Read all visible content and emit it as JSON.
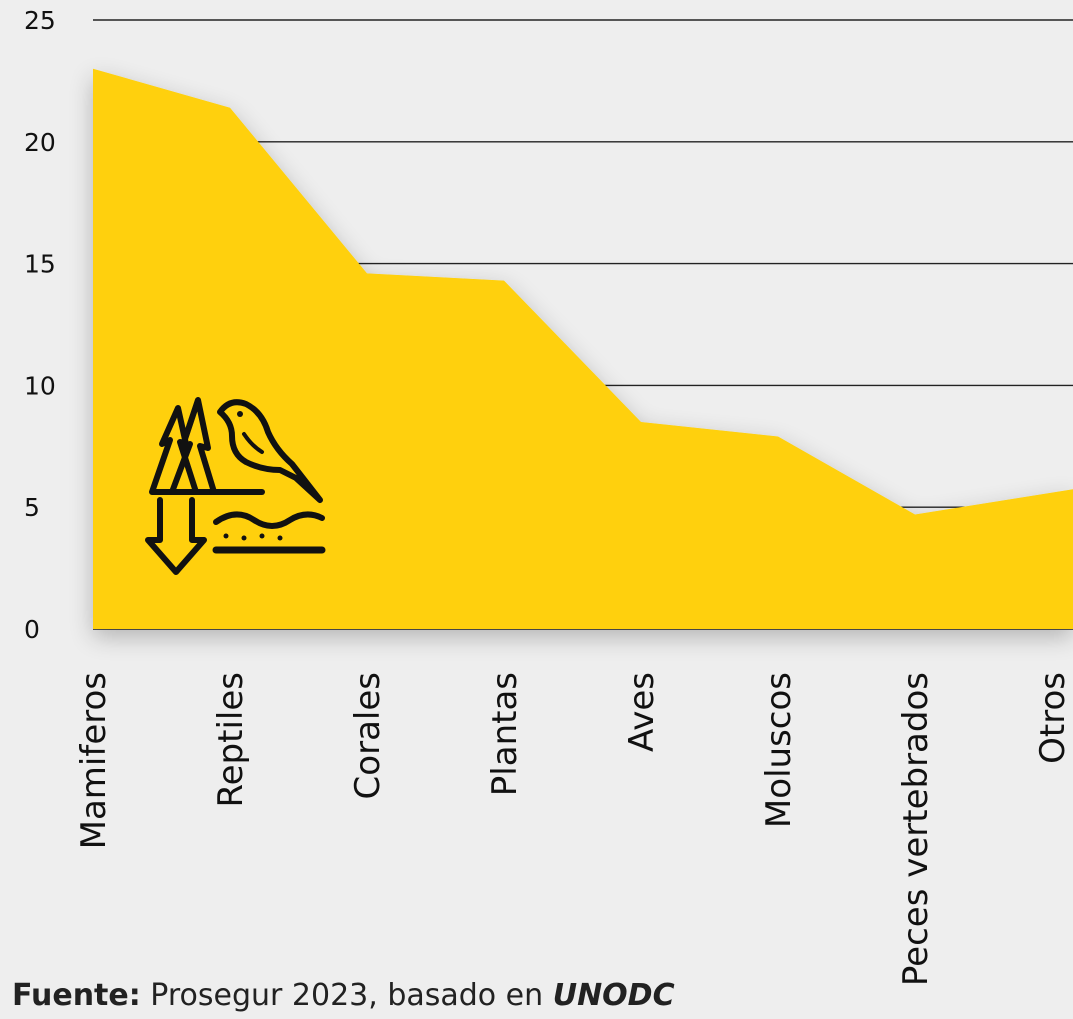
{
  "chart_data": {
    "type": "area",
    "categories": [
      "Mamiferos",
      "Reptiles",
      "Corales",
      "Plantas",
      "Aves",
      "Moluscos",
      "Peces vertebrados",
      "Otros"
    ],
    "values": [
      23.0,
      21.4,
      14.6,
      14.3,
      8.5,
      7.9,
      4.7,
      5.6
    ],
    "yticks": [
      0,
      5,
      10,
      15,
      20,
      25
    ],
    "ylim": [
      0,
      25
    ],
    "grid": true,
    "colors": {
      "area": "#FFD007",
      "grid": "#222222",
      "background": "#EEEEEE"
    },
    "icon": "wildlife-biodiversity-decline-icon"
  },
  "source": {
    "label": "Fuente:",
    "text": " Prosegur 2023, basado en ",
    "org": "UNODC"
  }
}
